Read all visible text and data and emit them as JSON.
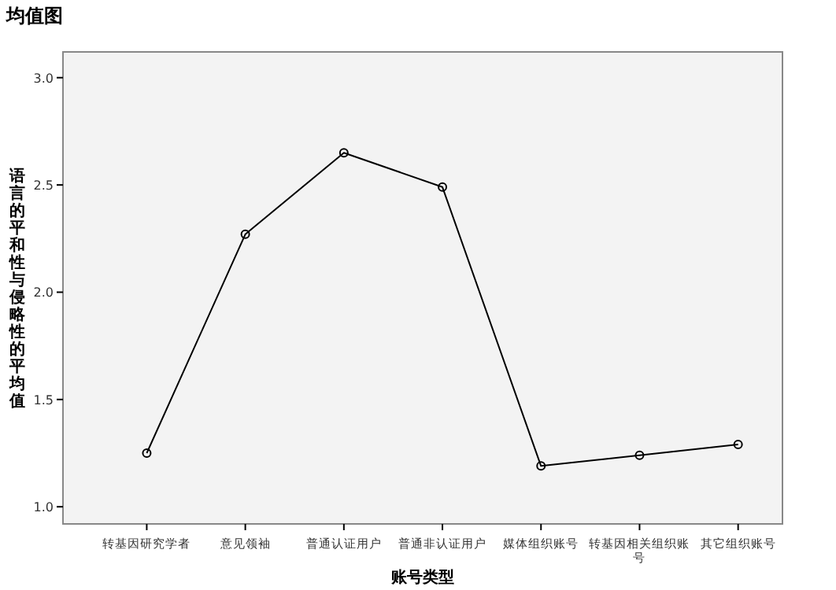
{
  "chart_data": {
    "type": "line",
    "title": "均值图",
    "xlabel": "账号类型",
    "ylabel": "语言的平和性与侵略性的平均值",
    "categories": [
      "转基因研究学者",
      "意见领袖",
      "普通认证用户",
      "普通非认证用户",
      "媒体组织账号",
      "转基因相关组织账号",
      "其它组织账号"
    ],
    "series": [
      {
        "color": "#000000",
        "values": [
          1.25,
          2.27,
          2.65,
          2.49,
          1.19,
          1.24,
          1.29
        ]
      }
    ],
    "ylim": [
      0.92,
      3.12
    ],
    "yticks": [
      {
        "value": 1,
        "label": "1.0"
      },
      {
        "value": 1.5,
        "label": "1.5"
      },
      {
        "value": 2,
        "label": "2.0"
      },
      {
        "value": 2.5,
        "label": "2.5"
      },
      {
        "value": 3,
        "label": "3.0"
      }
    ],
    "marker": "circle",
    "line_style": "solid",
    "grid": false
  }
}
